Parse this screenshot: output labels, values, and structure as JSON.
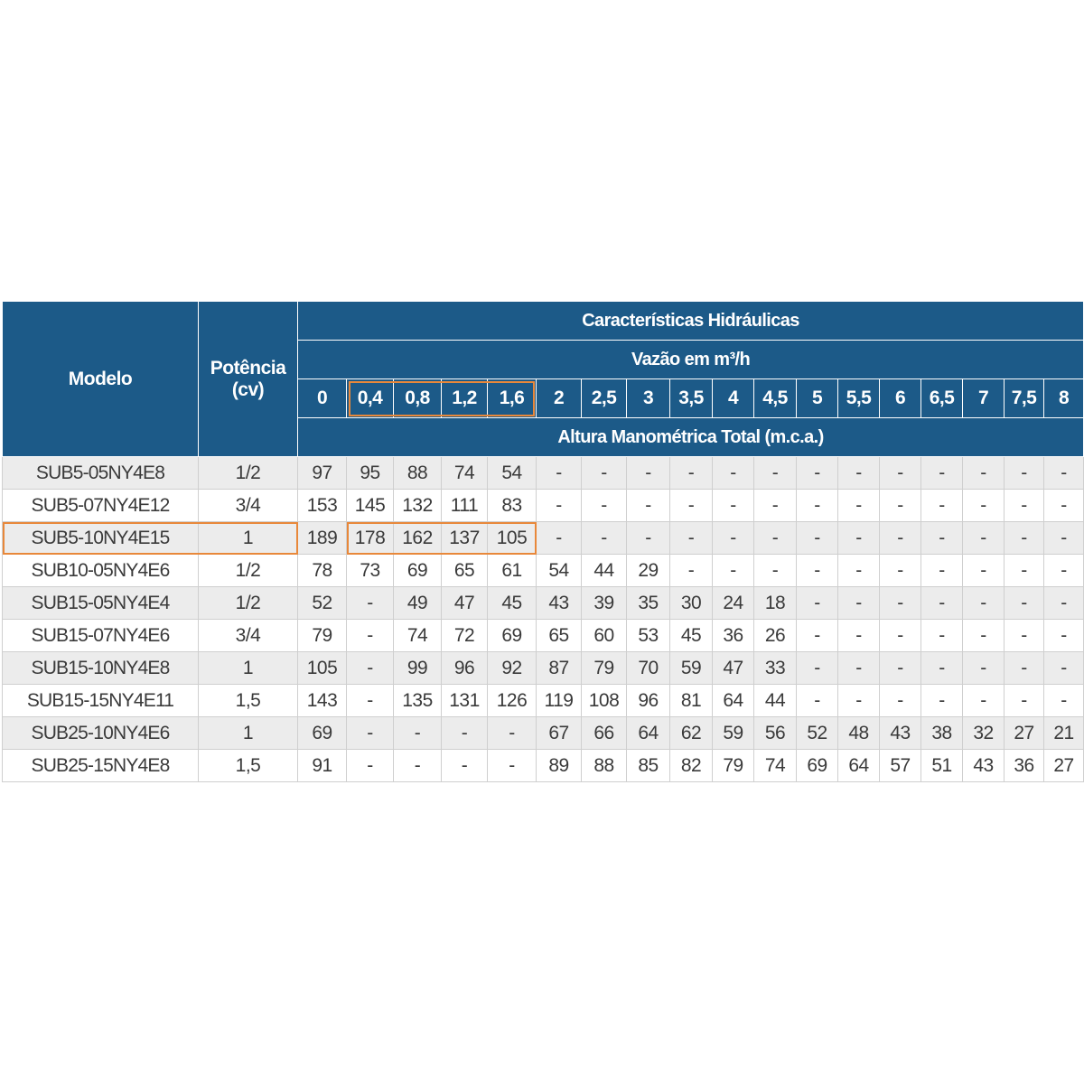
{
  "table": {
    "title": "Características Hidráulicas",
    "flow_label": "Vazão em m³/h",
    "head_label": "Altura Manométrica Total (m.c.a.)",
    "col_model": "Modelo",
    "col_power_line1": "Potência",
    "col_power_line2": "(cv)",
    "flows": [
      "0",
      "0,4",
      "0,8",
      "1,2",
      "1,6",
      "2",
      "2,5",
      "3",
      "3,5",
      "4",
      "4,5",
      "5",
      "5,5",
      "6",
      "6,5",
      "7",
      "7,5",
      "8"
    ],
    "rows": [
      {
        "model": "SUB5-05NY4E8",
        "power": "1/2",
        "values": [
          "97",
          "95",
          "88",
          "74",
          "54",
          "-",
          "-",
          "-",
          "-",
          "-",
          "-",
          "-",
          "-",
          "-",
          "-",
          "-",
          "-",
          "-"
        ]
      },
      {
        "model": "SUB5-07NY4E12",
        "power": "3/4",
        "values": [
          "153",
          "145",
          "132",
          "111",
          "83",
          "-",
          "-",
          "-",
          "-",
          "-",
          "-",
          "-",
          "-",
          "-",
          "-",
          "-",
          "-",
          "-"
        ]
      },
      {
        "model": "SUB5-10NY4E15",
        "power": "1",
        "values": [
          "189",
          "178",
          "162",
          "137",
          "105",
          "-",
          "-",
          "-",
          "-",
          "-",
          "-",
          "-",
          "-",
          "-",
          "-",
          "-",
          "-",
          "-"
        ]
      },
      {
        "model": "SUB10-05NY4E6",
        "power": "1/2",
        "values": [
          "78",
          "73",
          "69",
          "65",
          "61",
          "54",
          "44",
          "29",
          "-",
          "-",
          "-",
          "-",
          "-",
          "-",
          "-",
          "-",
          "-",
          "-"
        ]
      },
      {
        "model": "SUB15-05NY4E4",
        "power": "1/2",
        "values": [
          "52",
          "-",
          "49",
          "47",
          "45",
          "43",
          "39",
          "35",
          "30",
          "24",
          "18",
          "-",
          "-",
          "-",
          "-",
          "-",
          "-",
          "-"
        ]
      },
      {
        "model": "SUB15-07NY4E6",
        "power": "3/4",
        "values": [
          "79",
          "-",
          "74",
          "72",
          "69",
          "65",
          "60",
          "53",
          "45",
          "36",
          "26",
          "-",
          "-",
          "-",
          "-",
          "-",
          "-",
          "-"
        ]
      },
      {
        "model": "SUB15-10NY4E8",
        "power": "1",
        "values": [
          "105",
          "-",
          "99",
          "96",
          "92",
          "87",
          "79",
          "70",
          "59",
          "47",
          "33",
          "-",
          "-",
          "-",
          "-",
          "-",
          "-",
          "-"
        ]
      },
      {
        "model": "SUB15-15NY4E11",
        "power": "1,5",
        "values": [
          "143",
          "-",
          "135",
          "131",
          "126",
          "119",
          "108",
          "96",
          "81",
          "64",
          "44",
          "-",
          "-",
          "-",
          "-",
          "-",
          "-",
          "-"
        ]
      },
      {
        "model": "SUB25-10NY4E6",
        "power": "1",
        "values": [
          "69",
          "-",
          "-",
          "-",
          "-",
          "67",
          "66",
          "64",
          "62",
          "59",
          "56",
          "52",
          "48",
          "43",
          "38",
          "32",
          "27",
          "21"
        ]
      },
      {
        "model": "SUB25-15NY4E8",
        "power": "1,5",
        "values": [
          "91",
          "-",
          "-",
          "-",
          "-",
          "89",
          "88",
          "85",
          "82",
          "79",
          "74",
          "69",
          "64",
          "57",
          "51",
          "43",
          "36",
          "27"
        ]
      }
    ]
  },
  "colors": {
    "header_bg": "#1c5a88",
    "highlight": "#e8883a",
    "row_alt": "#ececec"
  }
}
